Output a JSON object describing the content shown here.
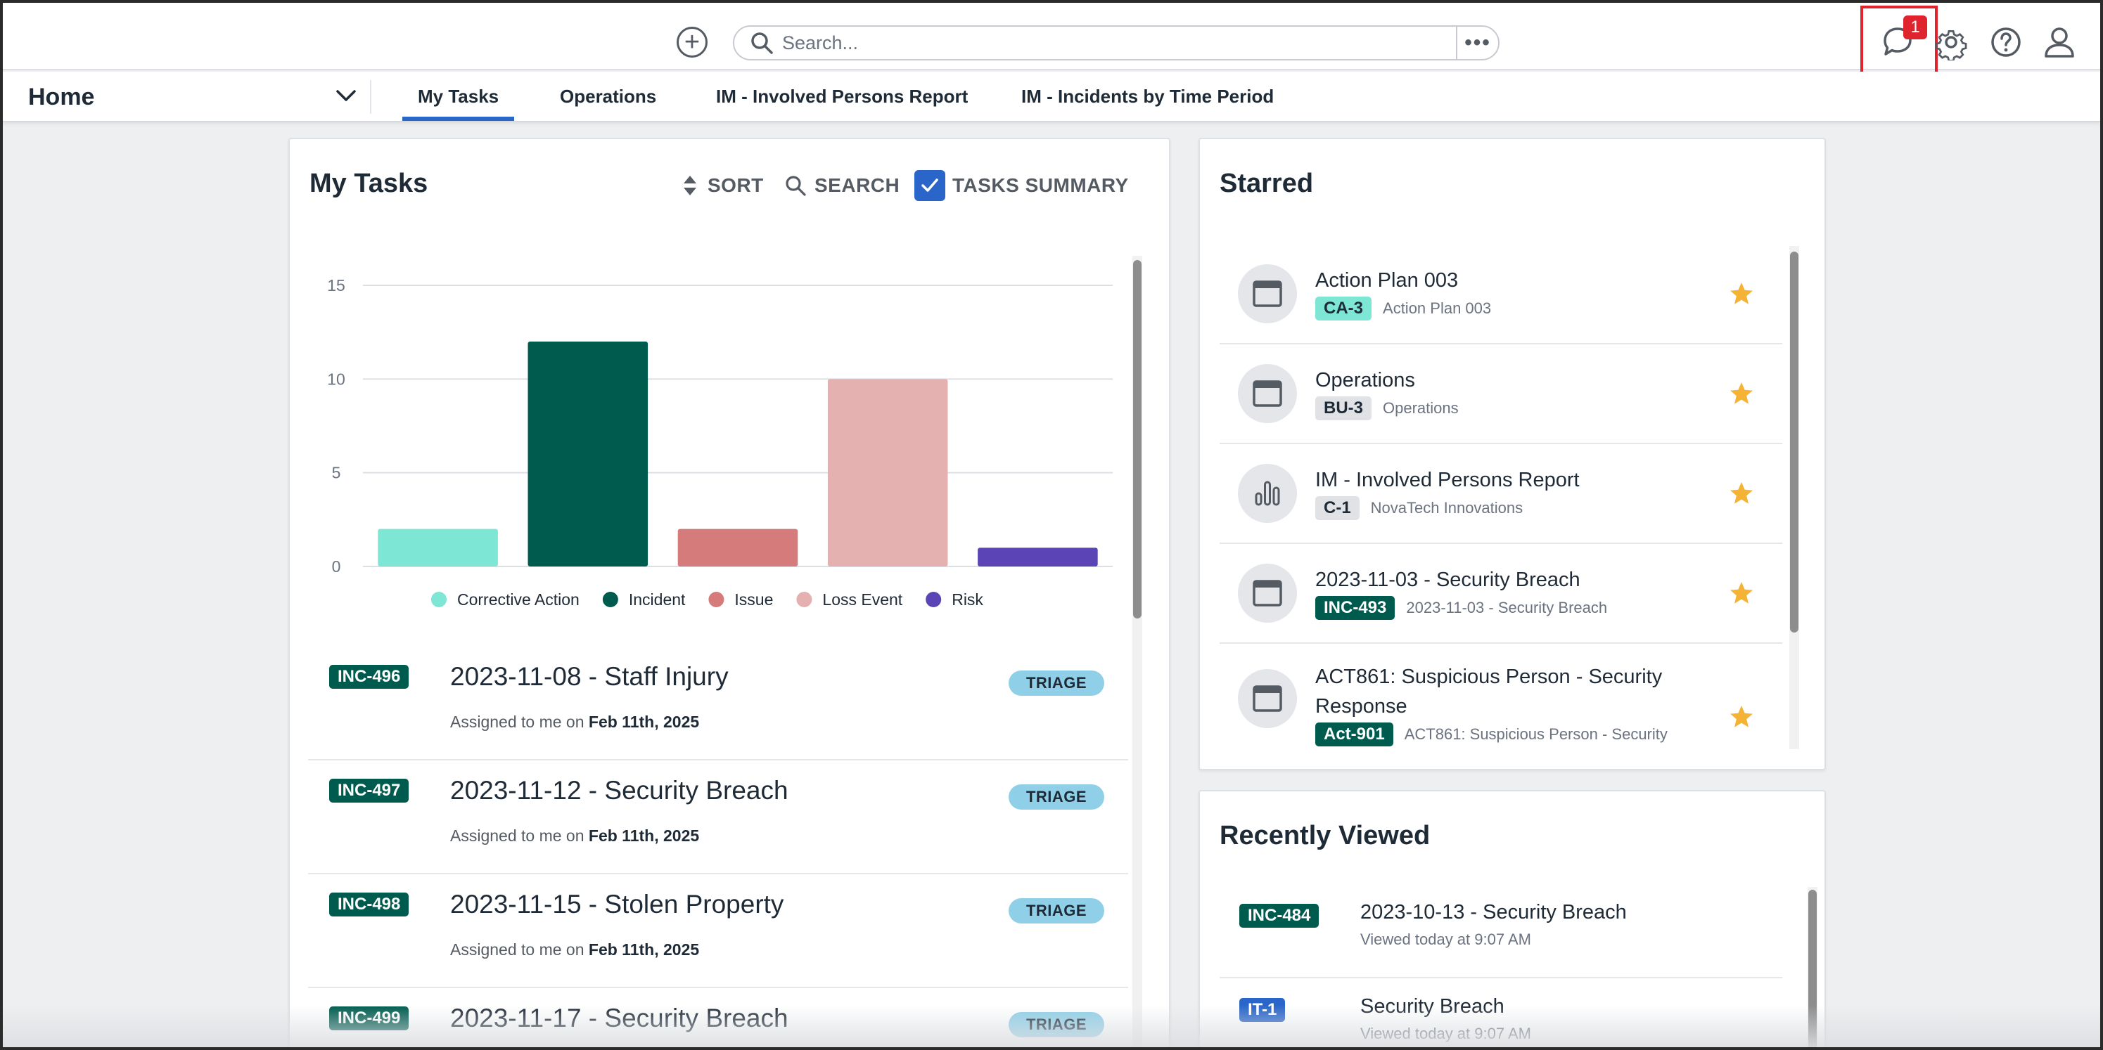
{
  "topbar": {
    "search_placeholder": "Search...",
    "notification_count": "1"
  },
  "nav": {
    "home_label": "Home",
    "tabs": [
      {
        "label": "My Tasks",
        "active": true
      },
      {
        "label": "Operations",
        "active": false
      },
      {
        "label": "IM - Involved Persons Report",
        "active": false
      },
      {
        "label": "IM - Incidents by Time Period",
        "active": false
      }
    ]
  },
  "my_tasks": {
    "title": "My Tasks",
    "sort_label": "SORT",
    "search_label": "SEARCH",
    "summary_label": "TASKS SUMMARY",
    "tasks": [
      {
        "id": "INC-496",
        "title": "2023-11-08 - Staff Injury",
        "assigned_prefix": "Assigned to me on",
        "date": "Feb 11th, 2025",
        "status": "TRIAGE"
      },
      {
        "id": "INC-497",
        "title": "2023-11-12 - Security Breach",
        "assigned_prefix": "Assigned to me on",
        "date": "Feb 11th, 2025",
        "status": "TRIAGE"
      },
      {
        "id": "INC-498",
        "title": "2023-11-15 - Stolen Property",
        "assigned_prefix": "Assigned to me on",
        "date": "Feb 11th, 2025",
        "status": "TRIAGE"
      },
      {
        "id": "INC-499",
        "title": "2023-11-17 - Security Breach",
        "assigned_prefix": "",
        "date": "",
        "status": "TRIAGE"
      }
    ]
  },
  "chart_data": {
    "type": "bar",
    "title": "",
    "xlabel": "",
    "ylabel": "",
    "categories": [
      "Corrective Action",
      "Incident",
      "Issue",
      "Loss Event",
      "Risk"
    ],
    "values": [
      2,
      12,
      2,
      10,
      1
    ],
    "colors": [
      "#7de6d4",
      "#005b4f",
      "#d57b7b",
      "#e4b0b0",
      "#5b44b5"
    ],
    "ylim": [
      0,
      15
    ],
    "yticks": [
      0,
      5,
      10,
      15
    ],
    "grid": true,
    "legend": "bottom"
  },
  "starred": {
    "title": "Starred",
    "items": [
      {
        "title": "Action Plan 003",
        "badge": "CA-3",
        "badge_style": "teal",
        "subtitle": "Action Plan 003",
        "icon": "window-icon"
      },
      {
        "title": "Operations",
        "badge": "BU-3",
        "badge_style": "grey",
        "subtitle": "Operations",
        "icon": "window-icon"
      },
      {
        "title": "IM - Involved Persons Report",
        "badge": "C-1",
        "badge_style": "grey",
        "subtitle": "NovaTech Innovations",
        "icon": "chart-icon"
      },
      {
        "title": "2023-11-03 - Security Breach",
        "badge": "INC-493",
        "badge_style": "green",
        "subtitle": "2023-11-03 - Security Breach",
        "icon": "window-icon"
      },
      {
        "title": "ACT861: Suspicious Person - Security Response",
        "badge": "Act-901",
        "badge_style": "green",
        "subtitle": "ACT861: Suspicious Person - Security",
        "icon": "window-icon"
      }
    ]
  },
  "recently_viewed": {
    "title": "Recently Viewed",
    "items": [
      {
        "badge": "INC-484",
        "badge_style": "green",
        "title": "2023-10-13 - Security Breach",
        "subtitle": "Viewed today at 9:07 AM"
      },
      {
        "badge": "IT-1",
        "badge_style": "blue",
        "title": "Security Breach",
        "subtitle": "Viewed today at 9:07 AM"
      }
    ]
  }
}
